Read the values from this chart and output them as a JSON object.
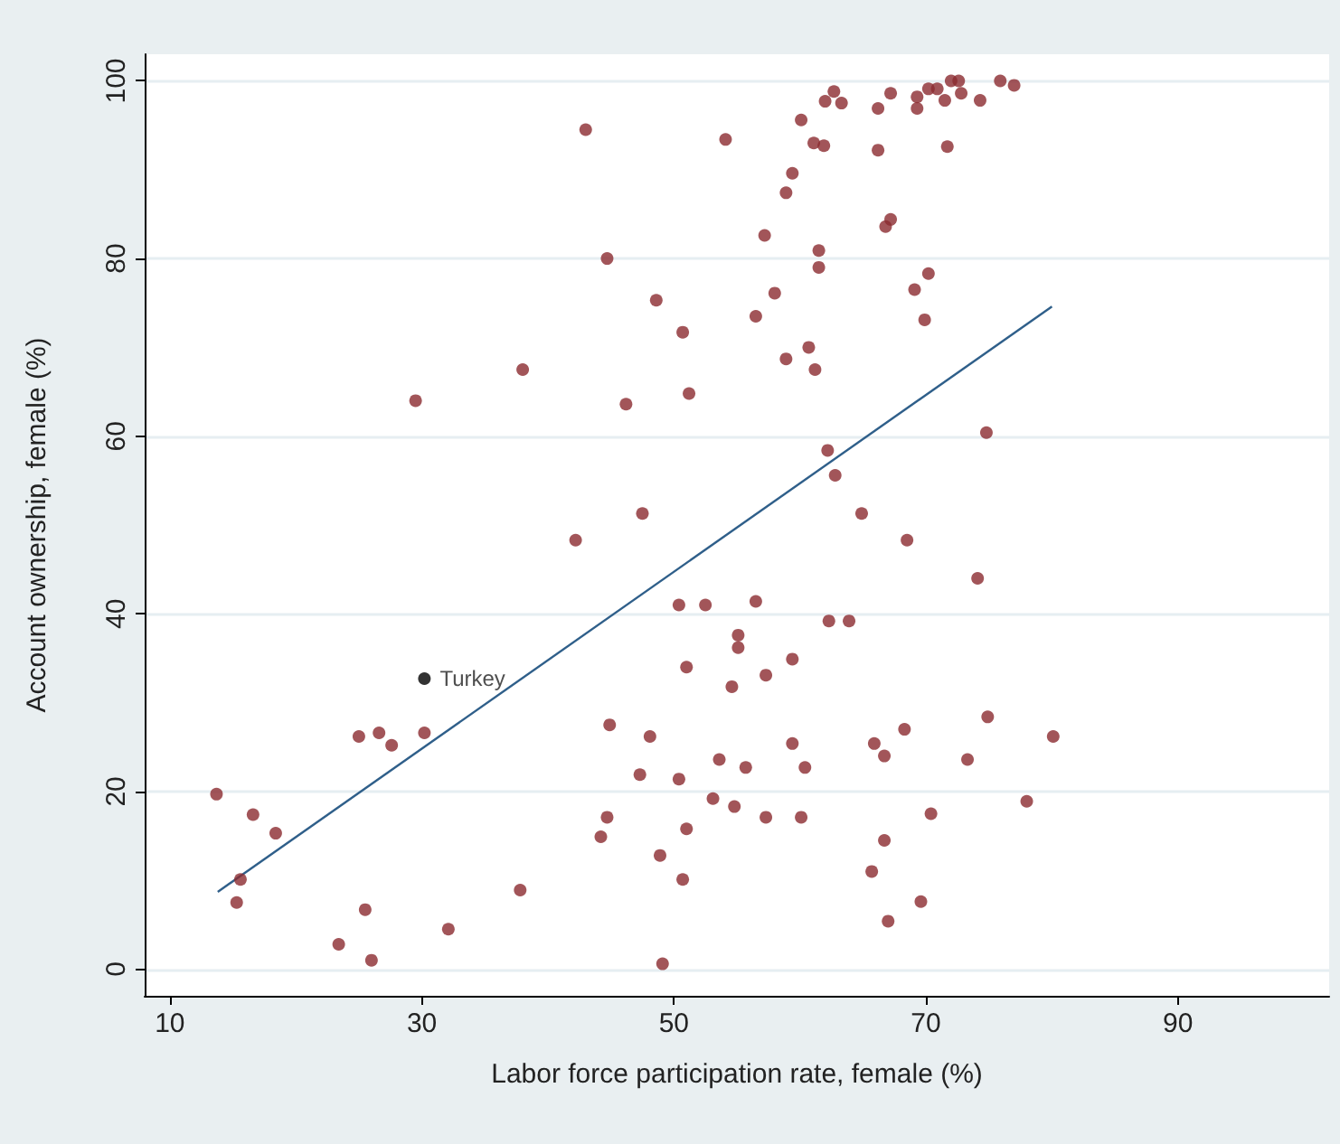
{
  "chart_data": {
    "type": "scatter",
    "xlabel": "Labor force participation rate, female (%)",
    "ylabel": "Account ownership, female (%)",
    "xlim": [
      8,
      102
    ],
    "xticks": [
      10,
      30,
      50,
      70,
      90
    ],
    "ylim": [
      -3,
      103
    ],
    "yticks": [
      0,
      20,
      40,
      60,
      80,
      100
    ],
    "grid": "y",
    "marker": "circle",
    "series": [
      {
        "color": "#8b2a30",
        "x": [
          13.7,
          16.6,
          18.4,
          15.6,
          15.3,
          23.4,
          25.5,
          26.0,
          25.0,
          26.6,
          27.6,
          30.2,
          32.1,
          37.8,
          29.5,
          38.0,
          43.0,
          54.1,
          44.7,
          48.6,
          50.7,
          46.2,
          51.2,
          47.5,
          42.2,
          60.1,
          62.0,
          62.7,
          63.3,
          66.2,
          67.2,
          69.3,
          69.3,
          70.2,
          70.9,
          71.5,
          72.0,
          72.6,
          72.8,
          74.3,
          75.9,
          77.0,
          61.1,
          61.9,
          66.2,
          71.7,
          59.4,
          58.9,
          57.2,
          66.8,
          67.2,
          61.5,
          61.5,
          58.0,
          56.5,
          69.1,
          70.2,
          69.9,
          60.7,
          58.9,
          61.2,
          74.8,
          62.2,
          62.8,
          64.9,
          68.5,
          50.4,
          52.5,
          55.1,
          55.1,
          51.0,
          54.6,
          44.9,
          48.1,
          47.3,
          50.4,
          53.6,
          53.1,
          54.8,
          44.7,
          44.2,
          51.0,
          48.9,
          50.7,
          49.1,
          74.1,
          56.5,
          62.3,
          63.9,
          59.4,
          57.3,
          74.9,
          68.3,
          80.1,
          59.4,
          65.9,
          66.7,
          73.3,
          55.7,
          60.4,
          78.0,
          57.3,
          60.1,
          70.4,
          66.7,
          65.7,
          69.6,
          67.0
        ],
        "values": [
          19.7,
          17.4,
          15.3,
          10.1,
          7.5,
          2.8,
          6.7,
          1.0,
          26.2,
          26.6,
          25.2,
          26.6,
          4.5,
          8.9,
          64.0,
          67.5,
          94.5,
          93.4,
          80.0,
          75.3,
          71.7,
          63.6,
          64.8,
          51.3,
          48.3,
          95.6,
          97.7,
          98.8,
          97.5,
          96.9,
          98.6,
          96.9,
          98.2,
          99.1,
          99.1,
          97.8,
          100.0,
          100.0,
          98.6,
          97.8,
          100.0,
          99.5,
          93.0,
          92.7,
          92.2,
          92.6,
          89.6,
          87.4,
          82.6,
          83.6,
          84.4,
          80.9,
          79.0,
          76.1,
          73.5,
          76.5,
          78.3,
          73.1,
          70.0,
          68.7,
          67.5,
          60.4,
          58.4,
          55.6,
          51.3,
          48.3,
          41.0,
          41.0,
          37.6,
          36.2,
          34.0,
          31.8,
          27.5,
          26.2,
          21.9,
          21.4,
          23.6,
          19.2,
          18.3,
          17.1,
          14.9,
          15.8,
          12.8,
          10.1,
          0.6,
          44.0,
          41.4,
          39.2,
          39.2,
          34.9,
          33.1,
          28.4,
          27.0,
          26.2,
          25.4,
          25.4,
          24.0,
          23.6,
          22.7,
          22.7,
          18.9,
          17.1,
          17.1,
          17.5,
          14.5,
          11.0,
          7.6,
          5.4
        ]
      },
      {
        "name": "Turkey",
        "color": "#000000",
        "x": [
          30.2
        ],
        "values": [
          32.7
        ]
      },
      {
        "type": "line",
        "marker": "none",
        "color": "#2f5f8a",
        "x": [
          13.8,
          80.0
        ],
        "values": [
          8.7,
          74.6
        ]
      }
    ]
  }
}
